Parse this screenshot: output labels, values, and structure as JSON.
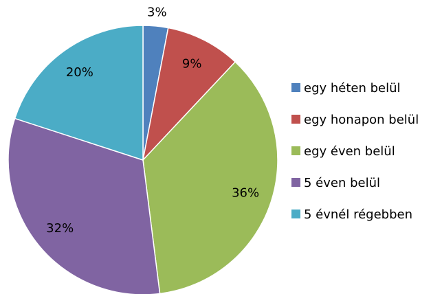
{
  "chart_data": {
    "type": "pie",
    "categories": [
      "egy héten belül",
      "egy honapon belül",
      "egy éven belül",
      "5 éven belül",
      "5 évnél régebben"
    ],
    "values": [
      3,
      9,
      36,
      32,
      20
    ],
    "value_labels": [
      "3%",
      "9%",
      "36%",
      "32%",
      "20%"
    ],
    "colors": [
      "#4f81bd",
      "#c0504d",
      "#9bbb59",
      "#8064a2",
      "#4bacc6"
    ],
    "legend": "right"
  }
}
